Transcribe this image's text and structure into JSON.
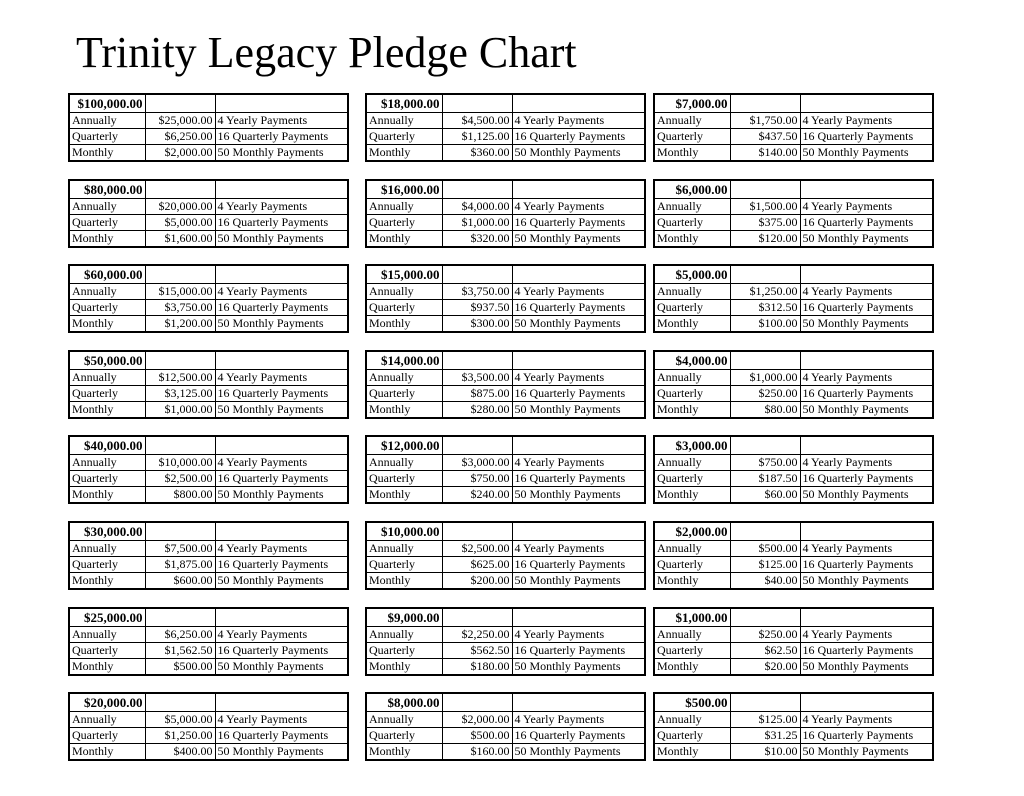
{
  "page": {
    "title": "Trinity Legacy Pledge Chart"
  },
  "row_labels": {
    "annually": "Annually",
    "quarterly": "Quarterly",
    "monthly": "Monthly"
  },
  "payment_labels": {
    "annually": "4 Yearly Payments",
    "quarterly": "16 Quarterly Payments",
    "monthly": "50 Monthly Payments"
  },
  "columns": [
    {
      "pledges": [
        {
          "amount": "$100,000.00",
          "annually": "$25,000.00",
          "quarterly": "$6,250.00",
          "monthly": "$2,000.00"
        },
        {
          "amount": "$80,000.00",
          "annually": "$20,000.00",
          "quarterly": "$5,000.00",
          "monthly": "$1,600.00"
        },
        {
          "amount": "$60,000.00",
          "annually": "$15,000.00",
          "quarterly": "$3,750.00",
          "monthly": "$1,200.00"
        },
        {
          "amount": "$50,000.00",
          "annually": "$12,500.00",
          "quarterly": "$3,125.00",
          "monthly": "$1,000.00"
        },
        {
          "amount": "$40,000.00",
          "annually": "$10,000.00",
          "quarterly": "$2,500.00",
          "monthly": "$800.00"
        },
        {
          "amount": "$30,000.00",
          "annually": "$7,500.00",
          "quarterly": "$1,875.00",
          "monthly": "$600.00"
        },
        {
          "amount": "$25,000.00",
          "annually": "$6,250.00",
          "quarterly": "$1,562.50",
          "monthly": "$500.00"
        },
        {
          "amount": "$20,000.00",
          "annually": "$5,000.00",
          "quarterly": "$1,250.00",
          "monthly": "$400.00"
        }
      ]
    },
    {
      "pledges": [
        {
          "amount": "$18,000.00",
          "annually": "$4,500.00",
          "quarterly": "$1,125.00",
          "monthly": "$360.00"
        },
        {
          "amount": "$16,000.00",
          "annually": "$4,000.00",
          "quarterly": "$1,000.00",
          "monthly": "$320.00"
        },
        {
          "amount": "$15,000.00",
          "annually": "$3,750.00",
          "quarterly": "$937.50",
          "monthly": "$300.00"
        },
        {
          "amount": "$14,000.00",
          "annually": "$3,500.00",
          "quarterly": "$875.00",
          "monthly": "$280.00"
        },
        {
          "amount": "$12,000.00",
          "annually": "$3,000.00",
          "quarterly": "$750.00",
          "monthly": "$240.00"
        },
        {
          "amount": "$10,000.00",
          "annually": "$2,500.00",
          "quarterly": "$625.00",
          "monthly": "$200.00"
        },
        {
          "amount": "$9,000.00",
          "annually": "$2,250.00",
          "quarterly": "$562.50",
          "monthly": "$180.00"
        },
        {
          "amount": "$8,000.00",
          "annually": "$2,000.00",
          "quarterly": "$500.00",
          "monthly": "$160.00"
        }
      ]
    },
    {
      "pledges": [
        {
          "amount": "$7,000.00",
          "annually": "$1,750.00",
          "quarterly": "$437.50",
          "monthly": "$140.00"
        },
        {
          "amount": "$6,000.00",
          "annually": "$1,500.00",
          "quarterly": "$375.00",
          "monthly": "$120.00"
        },
        {
          "amount": "$5,000.00",
          "annually": "$1,250.00",
          "quarterly": "$312.50",
          "monthly": "$100.00"
        },
        {
          "amount": "$4,000.00",
          "annually": "$1,000.00",
          "quarterly": "$250.00",
          "monthly": "$80.00"
        },
        {
          "amount": "$3,000.00",
          "annually": "$750.00",
          "quarterly": "$187.50",
          "monthly": "$60.00"
        },
        {
          "amount": "$2,000.00",
          "annually": "$500.00",
          "quarterly": "$125.00",
          "monthly": "$40.00"
        },
        {
          "amount": "$1,000.00",
          "annually": "$250.00",
          "quarterly": "$62.50",
          "monthly": "$20.00"
        },
        {
          "amount": "$500.00",
          "annually": "$125.00",
          "quarterly": "$31.25",
          "monthly": "$10.00"
        }
      ]
    }
  ]
}
